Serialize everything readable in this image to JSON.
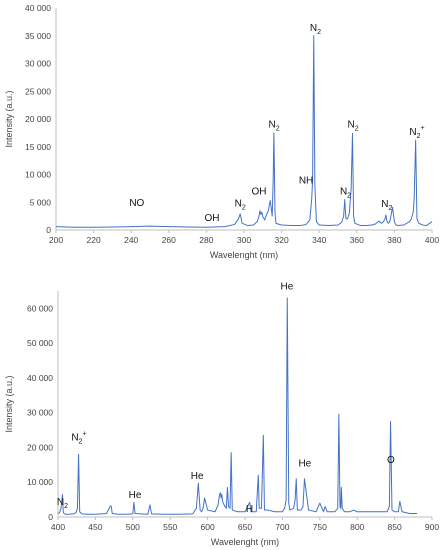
{
  "chart_data": [
    {
      "type": "line",
      "xlabel": "Wavelenght (nm)",
      "ylabel": "Intensity (a.u.)",
      "xlim": [
        200,
        400
      ],
      "ylim": [
        0,
        40000
      ],
      "xticks": [
        200,
        220,
        240,
        260,
        280,
        300,
        320,
        340,
        360,
        380,
        400
      ],
      "yticks": [
        0,
        5000,
        10000,
        15000,
        20000,
        25000,
        30000,
        35000,
        40000
      ],
      "ytick_labels": [
        "0",
        "5 000",
        "10 000",
        "15 000",
        "20 000",
        "25 000",
        "30 000",
        "35 000",
        "40 000"
      ],
      "grid": false,
      "series": [
        {
          "color": "#4472c4",
          "x": [
            200,
            210,
            220,
            230,
            240,
            250,
            260,
            270,
            280,
            290,
            295,
            296,
            297,
            298,
            299,
            302,
            305,
            307,
            308,
            308.5,
            309,
            309.5,
            310,
            311,
            312,
            313,
            313.5,
            314,
            315,
            315.5,
            315.9,
            316.5,
            317,
            320,
            325,
            330,
            333,
            335,
            336,
            336.5,
            337.1,
            337.7,
            338.5,
            340,
            345,
            350,
            352,
            353,
            353.6,
            354.2,
            355,
            356,
            357,
            357.7,
            358.3,
            359,
            362,
            365,
            368,
            370,
            371,
            372,
            373,
            374,
            375,
            375.5,
            376,
            376.8,
            377.5,
            378,
            379,
            380,
            380.5,
            381,
            382,
            385,
            388,
            389,
            390,
            390.5,
            391.3,
            392,
            393,
            395,
            397,
            400
          ],
          "y": [
            600,
            500,
            500,
            550,
            600,
            700,
            600,
            550,
            500,
            600,
            1000,
            1500,
            2000,
            2900,
            1200,
            800,
            900,
            1500,
            2500,
            3500,
            2800,
            3200,
            2400,
            1800,
            2800,
            3500,
            4600,
            5300,
            2500,
            8600,
            17500,
            3000,
            1200,
            900,
            800,
            800,
            1000,
            1800,
            5500,
            9000,
            35000,
            8000,
            1500,
            900,
            800,
            900,
            1400,
            2500,
            5500,
            2000,
            2000,
            3000,
            7500,
            17400,
            2500,
            1200,
            800,
            800,
            900,
            1100,
            1400,
            1600,
            1200,
            1400,
            2000,
            2700,
            1600,
            1200,
            1500,
            2300,
            4100,
            1500,
            1100,
            900,
            800,
            900,
            1500,
            2000,
            3200,
            5500,
            16200,
            2000,
            1200,
            900,
            800,
            1500
          ]
        }
      ],
      "annotations": [
        {
          "label": "NO",
          "x": 243,
          "y": 4300
        },
        {
          "label": "OH",
          "x": 283,
          "y": 1600
        },
        {
          "label": "N",
          "sub": "2",
          "x": 298,
          "y": 4200
        },
        {
          "label": "OH",
          "x": 308,
          "y": 6400
        },
        {
          "label": "N",
          "sub": "2",
          "x": 316,
          "y": 18500
        },
        {
          "label": "NH",
          "x": 333,
          "y": 8400
        },
        {
          "label": "N",
          "sub": "2",
          "x": 338,
          "y": 35900
        },
        {
          "label": "N",
          "sub": "2",
          "x": 354,
          "y": 6400
        },
        {
          "label": "N",
          "sub": "2",
          "x": 358,
          "y": 18500
        },
        {
          "label": "N",
          "sub": "2",
          "x": 376,
          "y": 4100
        },
        {
          "label": "N",
          "sub": "2",
          "sup": "+",
          "x": 392,
          "y": 17100
        }
      ]
    },
    {
      "type": "line",
      "xlabel": "Wavelenght (nm)",
      "ylabel": "Intensity (a.u.)",
      "xlim": [
        400,
        900
      ],
      "ylim": [
        0,
        65000
      ],
      "xticks": [
        400,
        450,
        500,
        550,
        600,
        650,
        700,
        750,
        800,
        850,
        900
      ],
      "yticks": [
        0,
        10000,
        20000,
        30000,
        40000,
        50000,
        60000
      ],
      "ytick_labels": [
        "0",
        "10 000",
        "20 000",
        "30 000",
        "40 000",
        "50 000",
        "60 000"
      ],
      "grid": false,
      "series": [
        {
          "color": "#4472c4",
          "x": [
            400,
            402,
            404,
            406,
            407,
            408,
            410,
            415,
            420,
            424,
            426,
            427.5,
            429,
            432,
            440,
            450,
            465,
            470,
            471.3,
            472.5,
            480,
            490,
            500,
            501.5,
            503,
            520,
            523,
            525,
            540,
            560,
            580,
            585,
            587.6,
            590,
            592,
            594,
            596,
            600,
            610,
            614,
            616,
            617,
            618,
            619,
            620,
            622,
            625,
            626.5,
            628,
            630,
            631.5,
            633,
            640,
            650,
            656.3,
            658,
            665,
            667.8,
            669,
            672,
            674.5,
            676,
            680,
            690,
            700,
            703,
            705,
            706.5,
            708.5,
            710,
            715,
            717,
            718.5,
            720,
            725,
            727.5,
            729.5,
            735,
            745,
            747,
            750,
            755,
            757,
            760,
            770,
            772,
            774,
            775.5,
            777,
            778,
            778.8,
            780,
            783,
            790,
            795,
            800,
            810,
            820,
            830,
            840,
            843,
            844.6,
            846.5,
            850,
            855,
            857,
            860,
            870,
            880
          ],
          "y": [
            1000,
            1200,
            2500,
            6500,
            1500,
            1000,
            800,
            800,
            900,
            1200,
            2500,
            18000,
            1500,
            900,
            800,
            800,
            1000,
            3200,
            3000,
            1000,
            800,
            800,
            900,
            4200,
            1000,
            800,
            3500,
            900,
            800,
            800,
            900,
            2500,
            9700,
            2000,
            1500,
            2500,
            5500,
            2000,
            1500,
            3500,
            6500,
            7000,
            5500,
            6500,
            4500,
            3500,
            2500,
            8500,
            3000,
            2500,
            18500,
            2000,
            1500,
            1500,
            4200,
            1500,
            1500,
            12000,
            2500,
            2500,
            23500,
            2000,
            2000,
            1500,
            1500,
            2500,
            5000,
            63000,
            4000,
            2000,
            2500,
            5000,
            11000,
            2000,
            2000,
            3000,
            11000,
            2000,
            1500,
            2500,
            4000,
            1500,
            3000,
            1500,
            1500,
            2000,
            2500,
            29500,
            3000,
            2500,
            8500,
            2500,
            1500,
            1500,
            2000,
            1500,
            1500,
            1500,
            1500,
            1500,
            3000,
            27500,
            2000,
            1500,
            1500,
            4500,
            1500,
            1000,
            1000
          ]
        }
      ],
      "annotations": [
        {
          "label": "N",
          "sub": "2",
          "x": 406,
          "y": 3500
        },
        {
          "label": "N",
          "sub": "2",
          "sup": "+",
          "x": 428,
          "y": 22000
        },
        {
          "label": "He",
          "x": 503,
          "y": 5500
        },
        {
          "label": "He",
          "x": 586,
          "y": 11000
        },
        {
          "label": "H",
          "x": 656,
          "y": 1500
        },
        {
          "label": "He",
          "x": 706,
          "y": 65500
        },
        {
          "label": "He",
          "x": 730,
          "y": 14500
        },
        {
          "label": "O",
          "x": 845,
          "y": 15500
        }
      ]
    }
  ]
}
